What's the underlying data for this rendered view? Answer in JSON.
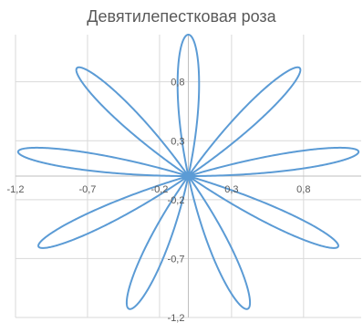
{
  "chart_data": {
    "type": "scatter",
    "title": "Девятилепестковая роза",
    "xlabel": "",
    "ylabel": "",
    "xlim": [
      -1.2,
      1.2
    ],
    "ylim": [
      -1.2,
      1.2
    ],
    "x_ticks": [
      {
        "value": -1.2,
        "label": "-1,2"
      },
      {
        "value": -0.7,
        "label": "-0,7"
      },
      {
        "value": -0.2,
        "label": "-0,2"
      },
      {
        "value": 0.3,
        "label": "0,3"
      },
      {
        "value": 0.8,
        "label": "0,8"
      }
    ],
    "y_ticks": [
      {
        "value": 0.8,
        "label": "0,8"
      },
      {
        "value": 0.3,
        "label": "0,3"
      },
      {
        "value": -0.2,
        "label": "-0,2"
      },
      {
        "value": -0.7,
        "label": "-0,7"
      },
      {
        "value": -1.2,
        "label": "-1,2"
      }
    ],
    "grid": true,
    "series": [
      {
        "curve": "rose",
        "petals": 9,
        "equation_k": 9,
        "amplitude": 1.2,
        "petal_tip_angles_deg": [
          90,
          130,
          170,
          210,
          250,
          290,
          330,
          10,
          50
        ],
        "color": "#5B9BD5",
        "line_width": 2
      }
    ],
    "legend": "none"
  }
}
